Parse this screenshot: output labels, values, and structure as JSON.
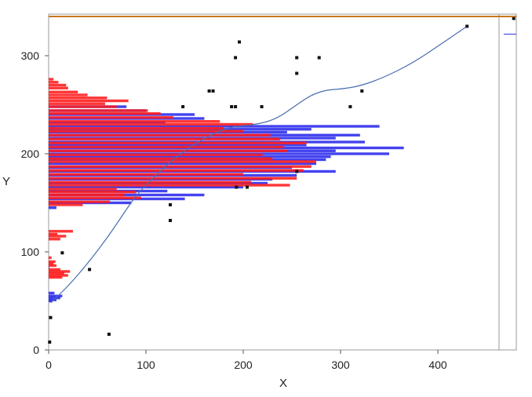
{
  "chart_data": {
    "type": "scatter",
    "title": "",
    "xlabel": "X",
    "ylabel": "Y",
    "xlim": [
      0,
      480
    ],
    "ylim": [
      0,
      340
    ],
    "x_ticks": [
      0,
      100,
      200,
      300,
      400
    ],
    "y_ticks": [
      0,
      100,
      200,
      300
    ],
    "reference_line_y": 340,
    "grid": false,
    "colors": {
      "bars_red": "#ff1a1a",
      "bars_blue": "#3333ee",
      "curve": "#4a6fb0",
      "points": "#111111",
      "frame": "#9a9a9a",
      "ref_line": "#c8761e"
    },
    "points": [
      [
        1,
        8
      ],
      [
        2,
        33
      ],
      [
        14,
        99
      ],
      [
        42,
        82
      ],
      [
        62,
        16
      ],
      [
        125,
        148
      ],
      [
        125,
        132
      ],
      [
        138,
        248
      ],
      [
        165,
        264
      ],
      [
        169,
        264
      ],
      [
        188,
        248
      ],
      [
        192,
        298
      ],
      [
        192,
        248
      ],
      [
        193,
        166
      ],
      [
        196,
        314
      ],
      [
        204,
        166
      ],
      [
        219,
        248
      ],
      [
        255,
        298
      ],
      [
        255,
        282
      ],
      [
        255,
        182
      ],
      [
        278,
        298
      ],
      [
        310,
        248
      ],
      [
        322,
        264
      ],
      [
        430,
        330
      ],
      [
        478,
        338
      ]
    ],
    "curve": [
      [
        2,
        48
      ],
      [
        20,
        65
      ],
      [
        40,
        88
      ],
      [
        60,
        114
      ],
      [
        75,
        136
      ],
      [
        90,
        158
      ],
      [
        110,
        178
      ],
      [
        130,
        196
      ],
      [
        150,
        210
      ],
      [
        170,
        221
      ],
      [
        190,
        228
      ],
      [
        215,
        230
      ],
      [
        235,
        236
      ],
      [
        255,
        250
      ],
      [
        270,
        260
      ],
      [
        285,
        265
      ],
      [
        300,
        266
      ],
      [
        320,
        269
      ],
      [
        345,
        278
      ],
      [
        375,
        293
      ],
      [
        405,
        313
      ],
      [
        430,
        330
      ]
    ],
    "right_margin_line_y": 322,
    "bars_blue": [
      [
        84,
        0.4
      ],
      [
        50,
        4
      ],
      [
        51,
        8
      ],
      [
        53,
        12
      ],
      [
        55,
        14
      ],
      [
        58,
        6
      ],
      [
        145,
        8
      ],
      [
        150,
        85
      ],
      [
        154,
        140
      ],
      [
        158,
        160
      ],
      [
        162,
        122
      ],
      [
        166,
        200
      ],
      [
        170,
        225
      ],
      [
        174,
        230
      ],
      [
        178,
        255
      ],
      [
        182,
        295
      ],
      [
        186,
        250
      ],
      [
        190,
        275
      ],
      [
        194,
        285
      ],
      [
        197,
        290
      ],
      [
        200,
        350
      ],
      [
        203,
        295
      ],
      [
        206,
        365
      ],
      [
        209,
        265
      ],
      [
        212,
        325
      ],
      [
        216,
        295
      ],
      [
        219,
        320
      ],
      [
        222,
        245
      ],
      [
        225,
        270
      ],
      [
        228,
        340
      ],
      [
        232,
        120
      ],
      [
        236,
        160
      ],
      [
        240,
        150
      ],
      [
        244,
        100
      ],
      [
        248,
        80
      ]
    ],
    "bars_red": [
      [
        74,
        14
      ],
      [
        76,
        20
      ],
      [
        78,
        16
      ],
      [
        80,
        22
      ],
      [
        82,
        12
      ],
      [
        86,
        8
      ],
      [
        88,
        5
      ],
      [
        90,
        7
      ],
      [
        94,
        3
      ],
      [
        113,
        12
      ],
      [
        116,
        18
      ],
      [
        118,
        9
      ],
      [
        121,
        25
      ],
      [
        148,
        35
      ],
      [
        151,
        63
      ],
      [
        155,
        95
      ],
      [
        158,
        78
      ],
      [
        161,
        90
      ],
      [
        164,
        70
      ],
      [
        168,
        248
      ],
      [
        171,
        208
      ],
      [
        175,
        255
      ],
      [
        179,
        200
      ],
      [
        183,
        262
      ],
      [
        187,
        270
      ],
      [
        192,
        275
      ],
      [
        195,
        230
      ],
      [
        199,
        220
      ],
      [
        203,
        245
      ],
      [
        207,
        242
      ],
      [
        211,
        265
      ],
      [
        215,
        238
      ],
      [
        219,
        228
      ],
      [
        223,
        200
      ],
      [
        226,
        180
      ],
      [
        230,
        210
      ],
      [
        233,
        176
      ],
      [
        237,
        128
      ],
      [
        241,
        115
      ],
      [
        244,
        102
      ],
      [
        248,
        70
      ],
      [
        251,
        58
      ],
      [
        254,
        82
      ],
      [
        257,
        60
      ],
      [
        260,
        40
      ],
      [
        263,
        30
      ],
      [
        267,
        20
      ],
      [
        270,
        18
      ],
      [
        273,
        10
      ],
      [
        276,
        5
      ]
    ]
  }
}
